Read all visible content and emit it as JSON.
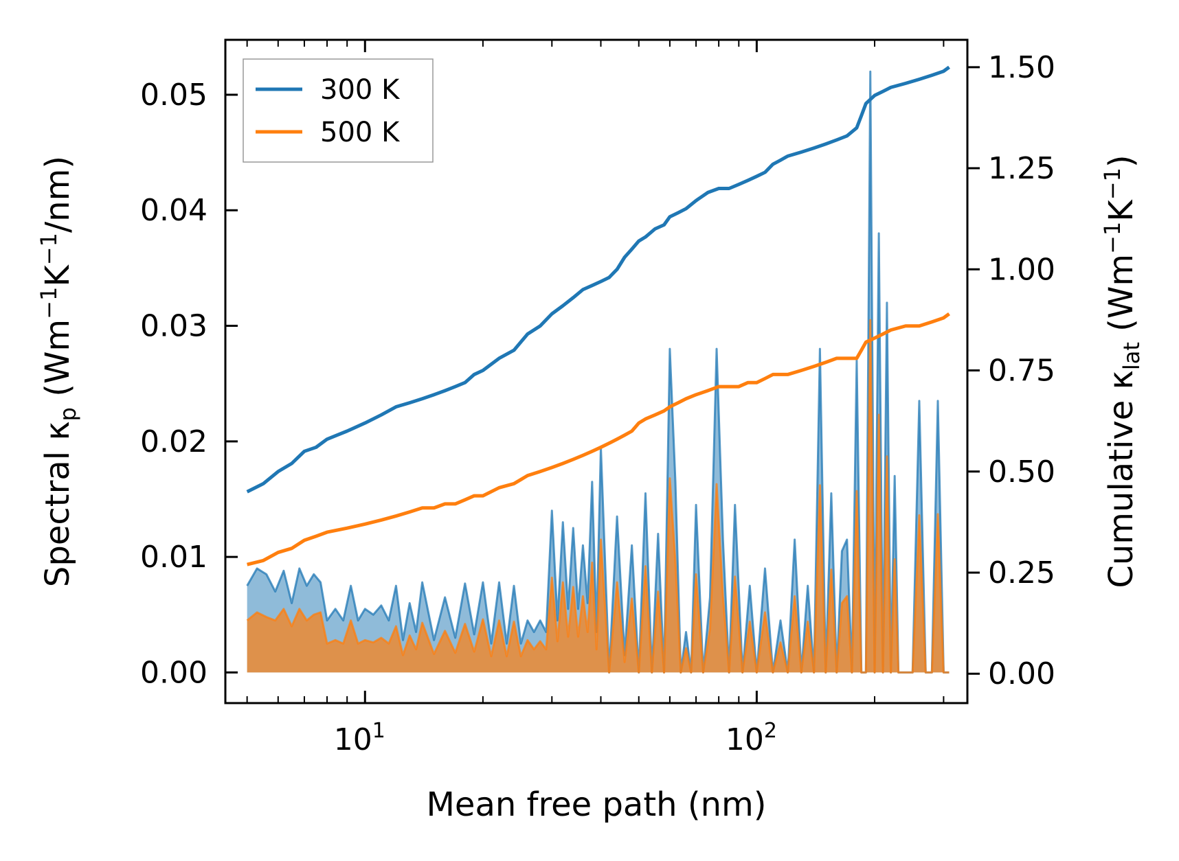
{
  "chart_data": {
    "type": "line+area (dual y-axis)",
    "xscale": "log",
    "xlim": [
      4.4,
      345
    ],
    "xlabel": "Mean free path (nm)",
    "x_ticks": [
      {
        "value": 10,
        "base": "10",
        "exp": "1"
      },
      {
        "value": 100,
        "base": "10",
        "exp": "2"
      }
    ],
    "left_axis": {
      "label_parts": [
        "Spectral κ",
        "p",
        " (Wm",
        "−1",
        "K",
        "−1",
        "/nm)"
      ],
      "ylim": [
        -0.00265,
        0.05475
      ],
      "ticks": [
        0.0,
        0.01,
        0.02,
        0.03,
        0.04,
        0.05
      ],
      "tick_labels": [
        "0.00",
        "0.01",
        "0.02",
        "0.03",
        "0.04",
        "0.05"
      ]
    },
    "right_axis": {
      "label_parts": [
        "Cumulative κ",
        "lat",
        " (Wm",
        "−1",
        "K",
        "−1",
        ")"
      ],
      "ylim": [
        -0.0726,
        1.5676
      ],
      "ticks": [
        0.0,
        0.25,
        0.5,
        0.75,
        1.0,
        1.25,
        1.5
      ],
      "tick_labels": [
        "0.00",
        "0.25",
        "0.50",
        "0.75",
        "1.00",
        "1.25",
        "1.50"
      ]
    },
    "legend": {
      "location": "upper-left",
      "entries": [
        "300 K",
        "500 K"
      ]
    },
    "colors": {
      "300 K": "#1f77b4",
      "500 K": "#ff7f0e",
      "spectral_300_fill": "#1f77b4",
      "spectral_500_fill": "#ff7f0e"
    },
    "series": [
      {
        "name": "300 K",
        "kind": "cumulative",
        "axis": "right",
        "x": [
          5.0,
          5.5,
          6.0,
          6.5,
          7.0,
          7.5,
          8.0,
          9.0,
          10.0,
          11.0,
          12.0,
          13.0,
          14.0,
          15.0,
          16.0,
          17.0,
          18.0,
          19.0,
          20.0,
          22.0,
          24.0,
          26.0,
          28.0,
          30.0,
          32.0,
          34.0,
          36.0,
          38.0,
          40.0,
          42.0,
          44.0,
          46.0,
          48.0,
          50.0,
          52.0,
          55.0,
          58.0,
          60.0,
          63.0,
          66.0,
          70.0,
          75.0,
          80.0,
          85.0,
          90.0,
          95.0,
          100.0,
          105.0,
          110.0,
          115.0,
          120.0,
          130.0,
          140.0,
          150.0,
          160.0,
          170.0,
          180.0,
          185.0,
          190.0,
          200.0,
          210.0,
          220.0,
          240.0,
          260.0,
          280.0,
          300.0,
          310.0
        ],
        "y": [
          0.45,
          0.47,
          0.5,
          0.52,
          0.55,
          0.56,
          0.58,
          0.6,
          0.62,
          0.64,
          0.66,
          0.67,
          0.68,
          0.69,
          0.7,
          0.71,
          0.72,
          0.74,
          0.75,
          0.78,
          0.8,
          0.84,
          0.86,
          0.89,
          0.91,
          0.93,
          0.95,
          0.96,
          0.97,
          0.98,
          1.0,
          1.03,
          1.05,
          1.07,
          1.08,
          1.1,
          1.11,
          1.13,
          1.14,
          1.15,
          1.17,
          1.19,
          1.2,
          1.2,
          1.21,
          1.22,
          1.23,
          1.24,
          1.26,
          1.27,
          1.28,
          1.29,
          1.3,
          1.31,
          1.32,
          1.33,
          1.35,
          1.38,
          1.41,
          1.43,
          1.44,
          1.45,
          1.46,
          1.47,
          1.48,
          1.49,
          1.5
        ]
      },
      {
        "name": "500 K",
        "kind": "cumulative",
        "axis": "right",
        "x": [
          5.0,
          5.5,
          6.0,
          6.5,
          7.0,
          7.5,
          8.0,
          9.0,
          10.0,
          11.0,
          12.0,
          13.0,
          14.0,
          15.0,
          16.0,
          17.0,
          18.0,
          19.0,
          20.0,
          22.0,
          24.0,
          26.0,
          28.0,
          30.0,
          32.0,
          34.0,
          36.0,
          38.0,
          40.0,
          42.0,
          44.0,
          46.0,
          48.0,
          50.0,
          52.0,
          55.0,
          58.0,
          60.0,
          63.0,
          66.0,
          70.0,
          75.0,
          80.0,
          85.0,
          90.0,
          95.0,
          100.0,
          105.0,
          110.0,
          115.0,
          120.0,
          130.0,
          140.0,
          150.0,
          160.0,
          170.0,
          180.0,
          185.0,
          190.0,
          200.0,
          210.0,
          220.0,
          240.0,
          260.0,
          280.0,
          300.0,
          310.0
        ],
        "y": [
          0.27,
          0.28,
          0.3,
          0.31,
          0.33,
          0.34,
          0.35,
          0.36,
          0.37,
          0.38,
          0.39,
          0.4,
          0.41,
          0.41,
          0.42,
          0.42,
          0.43,
          0.44,
          0.44,
          0.46,
          0.47,
          0.49,
          0.5,
          0.51,
          0.52,
          0.53,
          0.54,
          0.55,
          0.56,
          0.57,
          0.58,
          0.59,
          0.6,
          0.62,
          0.63,
          0.64,
          0.65,
          0.66,
          0.67,
          0.68,
          0.69,
          0.7,
          0.71,
          0.71,
          0.71,
          0.72,
          0.72,
          0.73,
          0.74,
          0.74,
          0.74,
          0.75,
          0.76,
          0.77,
          0.78,
          0.78,
          0.78,
          0.8,
          0.82,
          0.83,
          0.84,
          0.85,
          0.86,
          0.86,
          0.87,
          0.88,
          0.89
        ]
      },
      {
        "name": "300 K",
        "kind": "spectral",
        "axis": "left",
        "x": [
          5.0,
          5.3,
          5.6,
          5.9,
          6.2,
          6.5,
          6.8,
          7.1,
          7.4,
          7.7,
          8.0,
          8.4,
          8.8,
          9.2,
          9.6,
          10.0,
          10.5,
          11.0,
          11.5,
          12.0,
          12.5,
          13.0,
          13.5,
          14.0,
          15.0,
          16.0,
          17.0,
          18.0,
          19.0,
          20.0,
          21.0,
          22.0,
          23.0,
          24.0,
          25.0,
          26.0,
          27.0,
          28.0,
          29.0,
          30.0,
          31.0,
          32.0,
          33.0,
          34.0,
          35.0,
          36.0,
          37.0,
          38.0,
          39.0,
          40.0,
          42.0,
          44.0,
          46.0,
          48.0,
          50.0,
          52.0,
          54.0,
          56.0,
          58.0,
          60.0,
          62.0,
          64.0,
          66.0,
          68.0,
          70.0,
          73.0,
          76.0,
          79.0,
          82.0,
          85.0,
          88.0,
          92.0,
          96.0,
          100.0,
          105.0,
          110.0,
          115.0,
          120.0,
          125.0,
          130.0,
          135.0,
          140.0,
          145.0,
          150.0,
          155.0,
          160.0,
          165.0,
          170.0,
          175.0,
          180.0,
          185.0,
          190.0,
          195.0,
          200.0,
          205.0,
          210.0,
          215.0,
          220.0,
          225.0,
          230.0,
          240.0,
          250.0,
          260.0,
          270.0,
          280.0,
          290.0,
          300.0,
          310.0
        ],
        "y": [
          0.0075,
          0.009,
          0.0085,
          0.007,
          0.0088,
          0.006,
          0.009,
          0.0075,
          0.0085,
          0.0078,
          0.0045,
          0.0055,
          0.0045,
          0.0075,
          0.0045,
          0.0055,
          0.005,
          0.0058,
          0.0045,
          0.0075,
          0.0028,
          0.006,
          0.0035,
          0.0078,
          0.0028,
          0.0065,
          0.003,
          0.0077,
          0.0033,
          0.0078,
          0.0025,
          0.0078,
          0.0025,
          0.0075,
          0.0025,
          0.0045,
          0.0035,
          0.0045,
          0.0035,
          0.014,
          0.0045,
          0.013,
          0.0055,
          0.0125,
          0.0055,
          0.011,
          0.006,
          0.0165,
          0.0035,
          0.0195,
          0.0,
          0.0135,
          0.0015,
          0.011,
          0.0,
          0.0155,
          0.0,
          0.012,
          0.0,
          0.028,
          0.0165,
          0.0,
          0.0035,
          0.0,
          0.0145,
          0.0,
          0.0065,
          0.028,
          0.0115,
          0.0,
          0.0145,
          0.0,
          0.0075,
          0.0,
          0.009,
          0.0,
          0.0045,
          0.0,
          0.0115,
          0.0,
          0.0075,
          0.0,
          0.028,
          0.0,
          0.0155,
          0.0,
          0.0105,
          0.0115,
          0.0,
          0.027,
          0.0,
          0.0,
          0.052,
          0.0,
          0.038,
          0.0,
          0.032,
          0.0,
          0.017,
          0.0,
          0.0,
          0.0,
          0.0235,
          0.0,
          0.0,
          0.0235,
          0.0,
          0.0
        ]
      },
      {
        "name": "500 K",
        "kind": "spectral",
        "axis": "left",
        "x": [
          5.0,
          5.3,
          5.6,
          5.9,
          6.2,
          6.5,
          6.8,
          7.1,
          7.4,
          7.7,
          8.0,
          8.4,
          8.8,
          9.2,
          9.6,
          10.0,
          10.5,
          11.0,
          11.5,
          12.0,
          12.5,
          13.0,
          13.5,
          14.0,
          15.0,
          16.0,
          17.0,
          18.0,
          19.0,
          20.0,
          21.0,
          22.0,
          23.0,
          24.0,
          25.0,
          26.0,
          27.0,
          28.0,
          29.0,
          30.0,
          31.0,
          32.0,
          33.0,
          34.0,
          35.0,
          36.0,
          37.0,
          38.0,
          39.0,
          40.0,
          42.0,
          44.0,
          46.0,
          48.0,
          50.0,
          52.0,
          54.0,
          56.0,
          58.0,
          60.0,
          62.0,
          64.0,
          66.0,
          68.0,
          70.0,
          73.0,
          76.0,
          79.0,
          82.0,
          85.0,
          88.0,
          92.0,
          96.0,
          100.0,
          105.0,
          110.0,
          115.0,
          120.0,
          125.0,
          130.0,
          135.0,
          140.0,
          145.0,
          150.0,
          155.0,
          160.0,
          165.0,
          170.0,
          175.0,
          180.0,
          185.0,
          190.0,
          195.0,
          200.0,
          205.0,
          210.0,
          215.0,
          220.0,
          225.0,
          230.0,
          240.0,
          250.0,
          260.0,
          270.0,
          280.0,
          290.0,
          300.0,
          310.0
        ],
        "y": [
          0.0045,
          0.0052,
          0.0048,
          0.0045,
          0.0055,
          0.004,
          0.0055,
          0.0045,
          0.005,
          0.0052,
          0.0025,
          0.0028,
          0.0025,
          0.0045,
          0.0025,
          0.0028,
          0.0026,
          0.003,
          0.0025,
          0.004,
          0.0015,
          0.0032,
          0.002,
          0.0043,
          0.0016,
          0.0036,
          0.0017,
          0.0042,
          0.0018,
          0.0046,
          0.0014,
          0.0045,
          0.0014,
          0.0044,
          0.0014,
          0.0028,
          0.002,
          0.0027,
          0.002,
          0.0082,
          0.0027,
          0.0078,
          0.0031,
          0.0074,
          0.0031,
          0.0066,
          0.0035,
          0.0095,
          0.002,
          0.0115,
          0.0,
          0.0078,
          0.0009,
          0.0064,
          0.0,
          0.0092,
          0.0,
          0.007,
          0.0,
          0.0168,
          0.0096,
          0.0,
          0.0021,
          0.0,
          0.0085,
          0.0,
          0.0038,
          0.0163,
          0.0066,
          0.0,
          0.0083,
          0.0,
          0.0044,
          0.0,
          0.0052,
          0.0,
          0.0026,
          0.0,
          0.0066,
          0.0,
          0.0044,
          0.0,
          0.0162,
          0.0,
          0.0089,
          0.0,
          0.006,
          0.0066,
          0.0,
          0.0157,
          0.0,
          0.0,
          0.0305,
          0.0,
          0.0223,
          0.0,
          0.0187,
          0.0,
          0.0098,
          0.0,
          0.0,
          0.0,
          0.0136,
          0.0,
          0.0,
          0.0137,
          0.0,
          0.0
        ]
      }
    ]
  }
}
